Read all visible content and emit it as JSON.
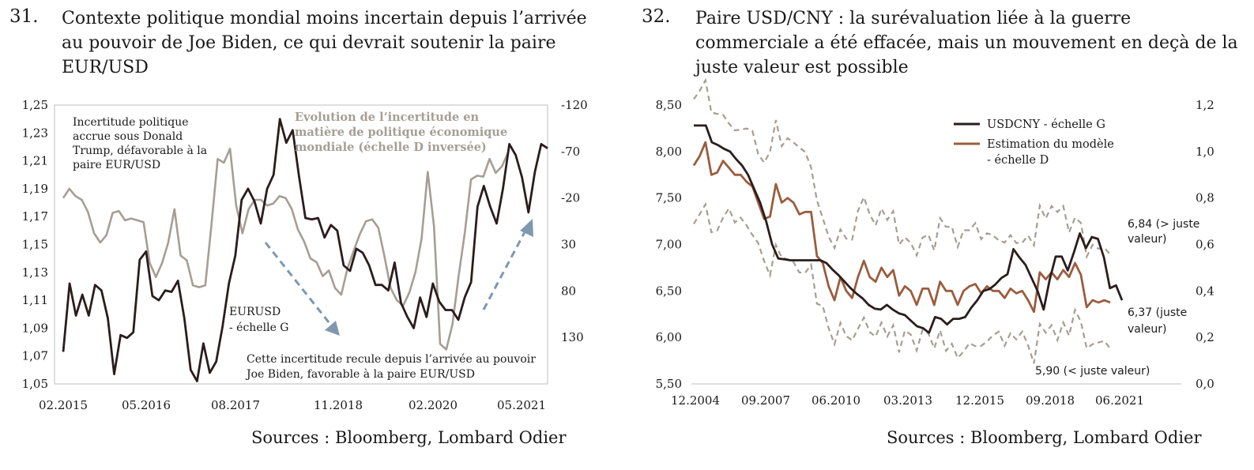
{
  "charts": [
    {
      "number": "31.",
      "title": "Contexte politique mondial moins incertain depuis l’arrivée au pouvoir de Joe Biden, ce qui devrait soutenir la paire EUR/USD",
      "source": "Sources : Bloomberg, Lombard Odier"
    },
    {
      "number": "32.",
      "title": "Paire USD/CNY : la surévaluation liée à la guerre commerciale a été effacée, mais un mouvement en deçà de la juste valeur est possible",
      "source": "Sources : Bloomberg, Lombard Odier"
    }
  ],
  "chart_data": [
    {
      "type": "line",
      "title": "Contexte politique mondial moins incertain depuis l’arrivée au pouvoir de Joe Biden, ce qui devrait soutenir la paire EUR/USD",
      "x_ticks": [
        "02.2015",
        "05.2016",
        "08.2017",
        "11.2018",
        "02.2020",
        "05.2021"
      ],
      "ylim_left": [
        1.05,
        1.25
      ],
      "yticks_left": [
        "1,05",
        "1,07",
        "1,09",
        "1,11",
        "1,13",
        "1,15",
        "1,17",
        "1,19",
        "1,21",
        "1,23",
        "1,25"
      ],
      "ylim_right_inverted": [
        -120,
        180
      ],
      "yticks_right": [
        "-120",
        "-70",
        "-20",
        "30",
        "80",
        "130"
      ],
      "grid": false,
      "series": [
        {
          "name": "EURUSD - échelle G",
          "axis": "left",
          "color": "#2b1d1d",
          "values": [
            1.073,
            1.122,
            1.099,
            1.114,
            1.099,
            1.121,
            1.117,
            1.097,
            1.057,
            1.085,
            1.083,
            1.087,
            1.139,
            1.145,
            1.113,
            1.11,
            1.117,
            1.116,
            1.124,
            1.097,
            1.06,
            1.052,
            1.079,
            1.058,
            1.066,
            1.091,
            1.122,
            1.142,
            1.182,
            1.19,
            1.181,
            1.165,
            1.19,
            1.2,
            1.24,
            1.223,
            1.232,
            1.199,
            1.169,
            1.168,
            1.169,
            1.155,
            1.164,
            1.16,
            1.135,
            1.131,
            1.147,
            1.144,
            1.135,
            1.121,
            1.121,
            1.117,
            1.137,
            1.108,
            1.098,
            1.09,
            1.112,
            1.098,
            1.122,
            1.109,
            1.103,
            1.103,
            1.096,
            1.112,
            1.123,
            1.177,
            1.192,
            1.177,
            1.165,
            1.19,
            1.222,
            1.214,
            1.198,
            1.173,
            1.202,
            1.222,
            1.219
          ]
        },
        {
          "name": "Evolution de l’incertitude en matière de politique économique mondiale (échelle D inversée)",
          "axis": "right",
          "color": "#a69e94",
          "values": [
            -20,
            -30,
            -22,
            -18,
            -5,
            18,
            28,
            20,
            -4,
            -6,
            4,
            2,
            4,
            6,
            50,
            65,
            50,
            28,
            -8,
            42,
            47,
            74,
            76,
            74,
            8,
            -62,
            -58,
            -73,
            -12,
            18,
            -8,
            -18,
            -18,
            -12,
            -14,
            -22,
            -20,
            -8,
            14,
            27,
            45,
            49,
            64,
            58,
            77,
            84,
            56,
            37,
            19,
            5,
            3,
            12,
            43,
            77,
            90,
            96,
            82,
            60,
            24,
            -48,
            10,
            137,
            143,
            116,
            64,
            17,
            -40,
            -44,
            -43,
            -62,
            -47,
            -54,
            -69
          ]
        }
      ],
      "annotations": [
        "Incertitude politique accrue sous Donald Trump, défavorable à la paire EUR/USD",
        "Evolution de l’incertitude en matière de politique économique mondiale (échelle D inversée)",
        "EURUSD - échelle G",
        "Cette incertitude recule depuis l’arrivée au pouvoir Joe Biden, favorable à la paire EUR/USD"
      ],
      "annotation_lines": {
        "left_note": [
          "Incertitude politique",
          "accrue sous Donald",
          "Trump, défavorable à la",
          "paire EUR/USD"
        ],
        "grey_note": [
          "Evolution de l’incertitude en",
          "matière de politique économique",
          "mondiale (échelle D inversée)"
        ],
        "eurusd_label": [
          "EURUSD",
          "- échelle G"
        ],
        "bottom_note": [
          "Cette incertitude recule depuis l’arrivée au pouvoir",
          "Joe Biden, favorable à la paire EUR/USD"
        ]
      },
      "arrow_color": "#7f98ae"
    },
    {
      "type": "line",
      "title": "Paire USD/CNY : la surévaluation liée à la guerre commerciale a été effacée, mais un mouvement en deçà de la juste valeur est possible",
      "x_ticks": [
        "12.2004",
        "09.2007",
        "06.2010",
        "03.2013",
        "12.2015",
        "09.2018",
        "06.2021"
      ],
      "ylim_left": [
        5.5,
        8.5
      ],
      "yticks_left": [
        "5,50",
        "6,00",
        "6,50",
        "7,00",
        "7,50",
        "8,00",
        "8,50"
      ],
      "ylim_right": [
        0.0,
        1.2
      ],
      "yticks_right": [
        "0,0",
        "0,2",
        "0,4",
        "0,6",
        "0,8",
        "1,0",
        "1,2"
      ],
      "grid": false,
      "legend_position": "top-right",
      "series": [
        {
          "name": "USDCNY - échelle G",
          "axis": "left",
          "color": "#2b1d1d",
          "values": [
            8.28,
            8.28,
            8.28,
            8.1,
            8.07,
            8.03,
            8.0,
            7.92,
            7.85,
            7.75,
            7.6,
            7.45,
            7.25,
            7.0,
            6.85,
            6.84,
            6.83,
            6.83,
            6.83,
            6.83,
            6.83,
            6.83,
            6.8,
            6.73,
            6.67,
            6.6,
            6.53,
            6.47,
            6.42,
            6.35,
            6.31,
            6.3,
            6.35,
            6.3,
            6.26,
            6.24,
            6.18,
            6.12,
            6.1,
            6.05,
            6.22,
            6.2,
            6.14,
            6.2,
            6.2,
            6.22,
            6.32,
            6.4,
            6.5,
            6.52,
            6.57,
            6.64,
            6.68,
            6.95,
            6.86,
            6.78,
            6.64,
            6.5,
            6.3,
            6.62,
            6.87,
            6.87,
            6.72,
            6.91,
            7.12,
            6.96,
            7.08,
            7.06,
            6.86,
            6.53,
            6.56,
            6.4
          ]
        },
        {
          "name": "Estimation du modèle - échelle D",
          "axis": "right",
          "color": "#9a5d3e",
          "values": [
            0.94,
            0.98,
            1.04,
            0.9,
            0.91,
            0.96,
            0.93,
            0.9,
            0.9,
            0.87,
            0.85,
            0.78,
            0.71,
            0.72,
            0.86,
            0.78,
            0.8,
            0.78,
            0.73,
            0.74,
            0.74,
            0.55,
            0.52,
            0.42,
            0.36,
            0.46,
            0.4,
            0.37,
            0.46,
            0.53,
            0.46,
            0.44,
            0.5,
            0.46,
            0.49,
            0.38,
            0.42,
            0.4,
            0.34,
            0.41,
            0.41,
            0.34,
            0.44,
            0.4,
            0.4,
            0.34,
            0.4,
            0.42,
            0.43,
            0.39,
            0.42,
            0.4,
            0.4,
            0.37,
            0.41,
            0.39,
            0.4,
            0.36,
            0.31,
            0.48,
            0.45,
            0.48,
            0.45,
            0.49,
            0.46,
            0.52,
            0.47,
            0.33,
            0.36,
            0.35,
            0.36,
            0.35
          ]
        }
      ],
      "annotations": [
        "6,84 (> juste valeur)",
        "6,37 (juste valeur)",
        "5,90 (< juste valeur)"
      ],
      "annotation_lines": {
        "upper": [
          "6,84 (> juste",
          "valeur)"
        ],
        "mid": [
          "6,37 (juste",
          "valeur)"
        ],
        "lower": [
          "5,90 (< juste valeur)"
        ]
      },
      "legend": [
        "USDCNY - échelle G",
        [
          "Estimation du modèle",
          "- échelle D"
        ]
      ],
      "band_color": "#a69e94"
    }
  ]
}
